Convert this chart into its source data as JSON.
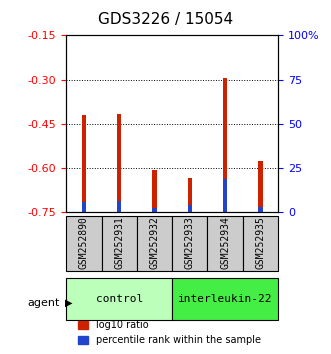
{
  "title": "GDS3226 / 15054",
  "samples": [
    "GSM252890",
    "GSM252931",
    "GSM252932",
    "GSM252933",
    "GSM252934",
    "GSM252935"
  ],
  "log10_ratio": [
    -0.42,
    -0.415,
    -0.605,
    -0.635,
    -0.295,
    -0.575
  ],
  "percentile_rank": [
    0.06,
    0.065,
    0.025,
    0.04,
    0.19,
    0.03
  ],
  "ymin": -0.75,
  "ymax": -0.15,
  "y_ticks_left": [
    -0.75,
    -0.6,
    -0.45,
    -0.3,
    -0.15
  ],
  "y_ticks_right": [
    0,
    25,
    50,
    75,
    100
  ],
  "bar_width": 0.12,
  "red_color": "#cc2200",
  "blue_color": "#2244cc",
  "group_labels": [
    "control",
    "interleukin-22"
  ],
  "group_ranges": [
    [
      0,
      3
    ],
    [
      3,
      6
    ]
  ],
  "group_color_light": "#bbffbb",
  "group_color_dark": "#44ee44",
  "agent_label": "agent",
  "legend_red": "log10 ratio",
  "legend_blue": "percentile rank within the sample",
  "title_fontsize": 11,
  "tick_fontsize": 8,
  "sample_fontsize": 7,
  "legend_fontsize": 7,
  "group_fontsize": 8
}
